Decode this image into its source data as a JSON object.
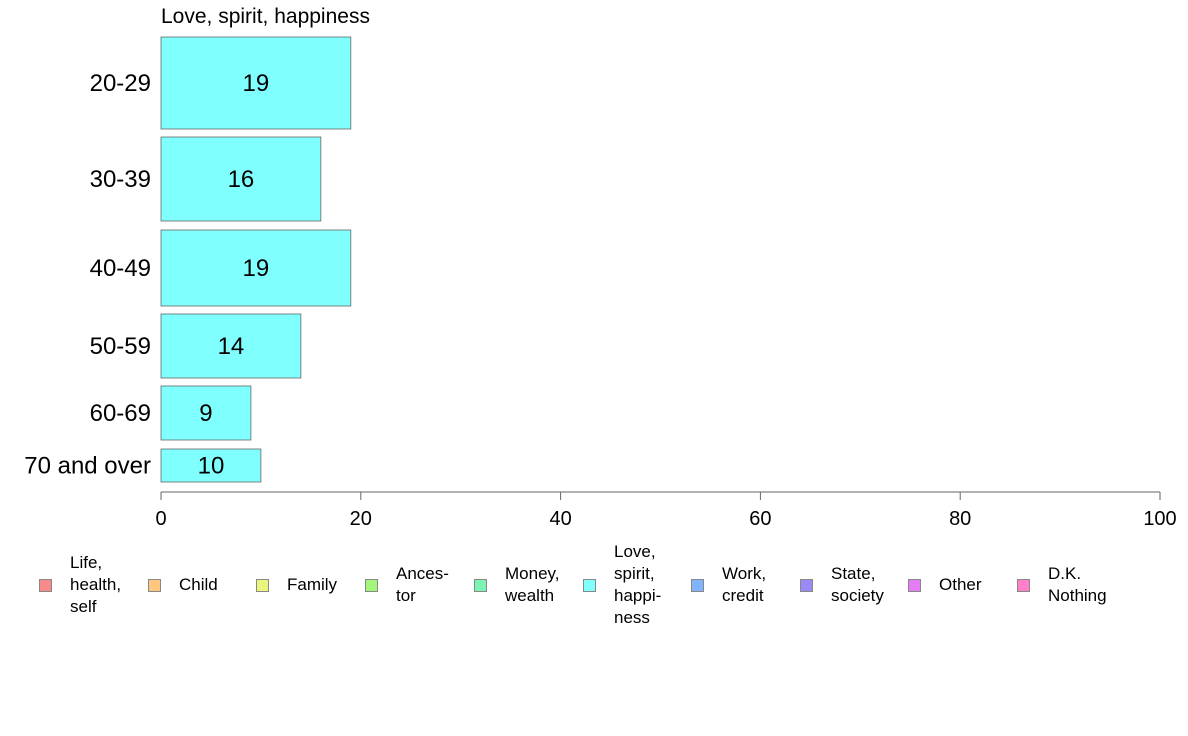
{
  "chart_data": {
    "type": "bar",
    "orientation": "horizontal",
    "title": "Love, spirit, happiness",
    "categories": [
      "20-29",
      "30-39",
      "40-49",
      "50-59",
      "60-69",
      "70 and over"
    ],
    "values": [
      19,
      16,
      19,
      14,
      9,
      10
    ],
    "bar_color": "#80ffff",
    "xlim": [
      0,
      100
    ],
    "xticks": [
      0,
      20,
      40,
      60,
      80,
      100
    ],
    "grid": false,
    "legend_position": "bottom",
    "legend": [
      {
        "label": "Life,\nhealth,\nself",
        "color": "#f88a8a"
      },
      {
        "label": "Child",
        "color": "#ffc680"
      },
      {
        "label": "Family",
        "color": "#eaf57c"
      },
      {
        "label": "Ances-\ntor",
        "color": "#a4f57c"
      },
      {
        "label": "Money,\nwealth",
        "color": "#7cf5b4"
      },
      {
        "label": "Love,\nspirit,\nhappi-\nness",
        "color": "#80ffff"
      },
      {
        "label": "Work,\ncredit",
        "color": "#80b4ff"
      },
      {
        "label": "State,\nsociety",
        "color": "#9a8af8"
      },
      {
        "label": "Other",
        "color": "#e37cf5"
      },
      {
        "label": "D.K.\nNothing",
        "color": "#ff80c8"
      }
    ]
  }
}
